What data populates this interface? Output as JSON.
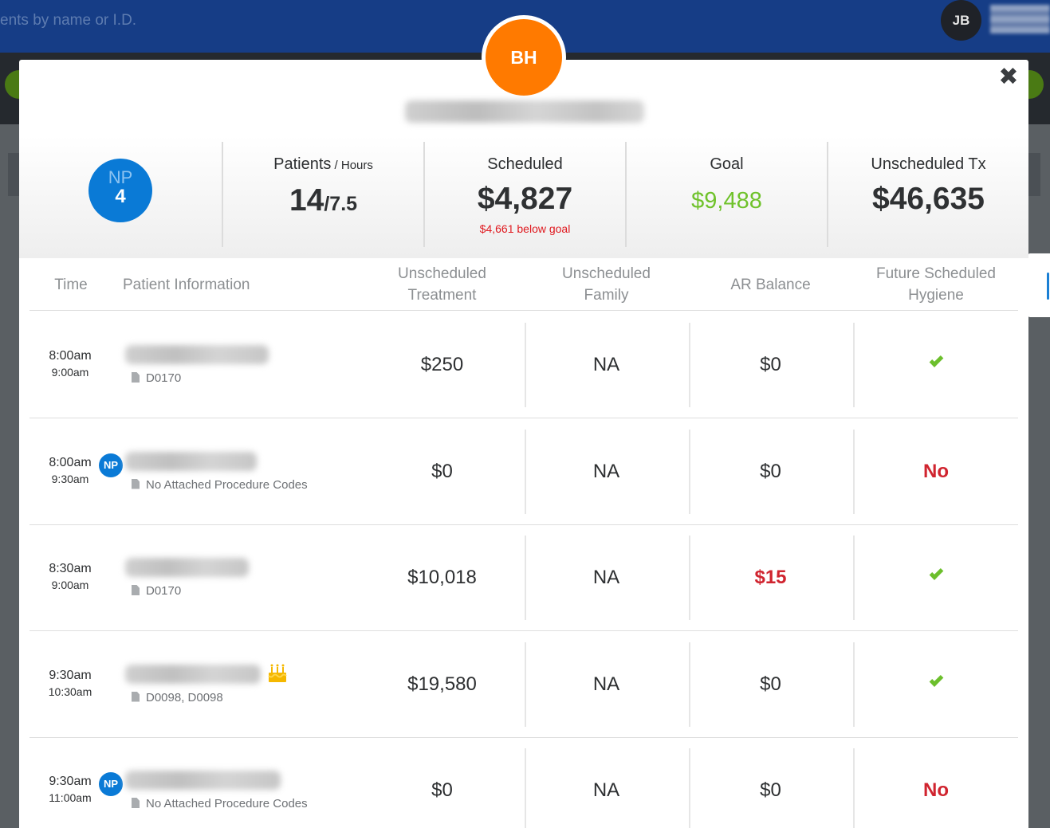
{
  "app": {
    "search_placeholder": "ents by name or I.D.",
    "user_initials": "JB"
  },
  "modal": {
    "close_label": "✖",
    "provider_initials": "BH",
    "stats": {
      "np_label": "NP",
      "np_count": "4",
      "patients_title": "Patients",
      "patients_title_suffix": " / Hours",
      "patients_value": "14",
      "hours_value": "/7.5",
      "scheduled_title": "Scheduled",
      "scheduled_value": "$4,827",
      "scheduled_note": "$4,661 below goal",
      "goal_title": "Goal",
      "goal_value": "$9,488",
      "unscheduled_title": "Unscheduled Tx",
      "unscheduled_value": "$46,635"
    },
    "columns": {
      "time": "Time",
      "patient_info": "Patient Information",
      "unscheduled_treatment": "Unscheduled Treatment",
      "unscheduled_family": "Unscheduled Family",
      "ar_balance": "AR Balance",
      "future_hygiene": "Future Scheduled Hygiene"
    },
    "rows": [
      {
        "start": "8:00am",
        "end": "9:00am",
        "np": "",
        "codes": "D0170",
        "treatment": "$250",
        "family": "NA",
        "ar": "$0",
        "hygiene": "check"
      },
      {
        "start": "8:00am",
        "end": "9:30am",
        "np": "NP",
        "codes": "No Attached Procedure Codes",
        "treatment": "$0",
        "family": "NA",
        "ar": "$0",
        "hygiene": "No"
      },
      {
        "start": "8:30am",
        "end": "9:00am",
        "np": "",
        "codes": "D0170",
        "treatment": "$10,018",
        "family": "NA",
        "ar": "$15",
        "hygiene": "check"
      },
      {
        "start": "9:30am",
        "end": "10:30am",
        "np": "",
        "codes": "D0098, D0098",
        "treatment": "$19,580",
        "family": "NA",
        "ar": "$0",
        "hygiene": "check",
        "birthday": "cake-icon"
      },
      {
        "start": "9:30am",
        "end": "11:00am",
        "np": "NP",
        "codes": "No Attached Procedure Codes",
        "treatment": "$0",
        "family": "NA",
        "ar": "$0",
        "hygiene": "No"
      }
    ],
    "colors": {
      "accent_blue": "#0a7ad6",
      "avatar_orange": "#ff7a00",
      "goal_green": "#6fc22b",
      "alert_red": "#d0242f"
    }
  }
}
